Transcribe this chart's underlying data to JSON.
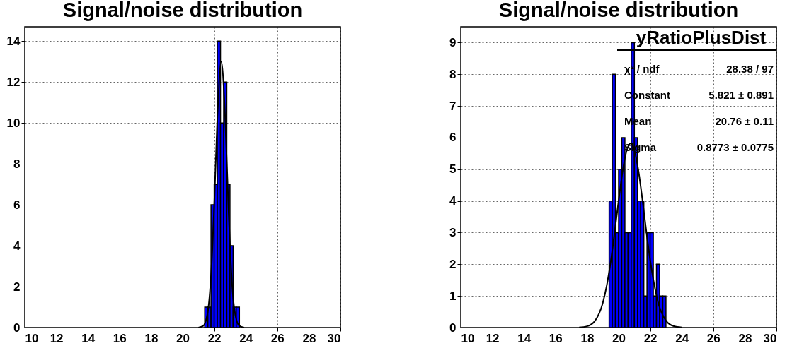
{
  "chart_data": [
    {
      "type": "histogram",
      "title": "Signal/noise distribution",
      "bins": [
        21.4,
        21.6,
        21.8,
        22.0,
        22.2,
        22.4,
        22.6,
        22.8,
        23.0,
        23.2,
        23.4,
        23.6
      ],
      "values": [
        1,
        1,
        6,
        7,
        14,
        10,
        12,
        7,
        4,
        1,
        1
      ],
      "color": "#0000ff",
      "series": [
        {
          "type": "line",
          "color": "#000000",
          "x": [
            21.0,
            21.3,
            21.6,
            21.8,
            22.0,
            22.2,
            22.45,
            22.7,
            22.9,
            23.1,
            23.3,
            23.6,
            23.9
          ],
          "values": [
            0.004,
            0.08,
            0.8,
            2.55,
            5.95,
            10.2,
            13,
            10.2,
            5.95,
            2.55,
            0.8,
            0.08,
            0.004
          ]
        }
      ],
      "xlim": [
        10,
        30
      ],
      "xticks": [
        10,
        12,
        14,
        16,
        18,
        20,
        22,
        24,
        26,
        28,
        30
      ],
      "ylim": [
        0,
        14.7
      ],
      "yticks": [
        0,
        2,
        4,
        6,
        8,
        10,
        12,
        14
      ],
      "grid": true
    },
    {
      "type": "histogram",
      "title": "Signal/noise distribution",
      "bins": [
        19.4,
        19.6,
        19.8,
        20.0,
        20.2,
        20.4,
        20.6,
        20.8,
        21.0,
        21.2,
        21.4,
        21.6,
        21.8,
        22.0,
        22.2,
        22.4,
        22.6,
        22.8,
        23.0
      ],
      "values": [
        4,
        8,
        3,
        5,
        6,
        3,
        3,
        9,
        6,
        4,
        4,
        1,
        3,
        3,
        1,
        2,
        1,
        1
      ],
      "color": "#0000ff",
      "series": [
        {
          "type": "line",
          "color": "#000000",
          "x": [
            17.5,
            18.0,
            18.5,
            19.0,
            19.25,
            19.5,
            20.0,
            20.25,
            20.5,
            20.76,
            21.0,
            21.25,
            21.5,
            21.75,
            22.0,
            22.25,
            22.5,
            23.0,
            23.5,
            24.0
          ],
          "values": [
            0.006,
            0.041,
            0.21,
            0.78,
            1.33,
            2.08,
            4.0,
            4.92,
            5.57,
            5.82,
            5.61,
            4.98,
            4.08,
            3.07,
            2.14,
            1.38,
            0.81,
            0.22,
            0.044,
            0.006
          ]
        }
      ],
      "xlim": [
        10,
        30
      ],
      "xticks": [
        10,
        12,
        14,
        16,
        18,
        20,
        22,
        24,
        26,
        28,
        30
      ],
      "ylim": [
        0,
        9.5
      ],
      "yticks": [
        0,
        1,
        2,
        3,
        4,
        5,
        6,
        7,
        8,
        9
      ],
      "grid": true,
      "annotations": [
        "yRatioPlusDist",
        "χ² / ndf",
        "28.38 / 97",
        "Constant",
        "5.821 ± 0.891",
        "Mean",
        "20.76 ± 0.11",
        "Sigma",
        "0.8773 ± 0.0775"
      ]
    }
  ]
}
